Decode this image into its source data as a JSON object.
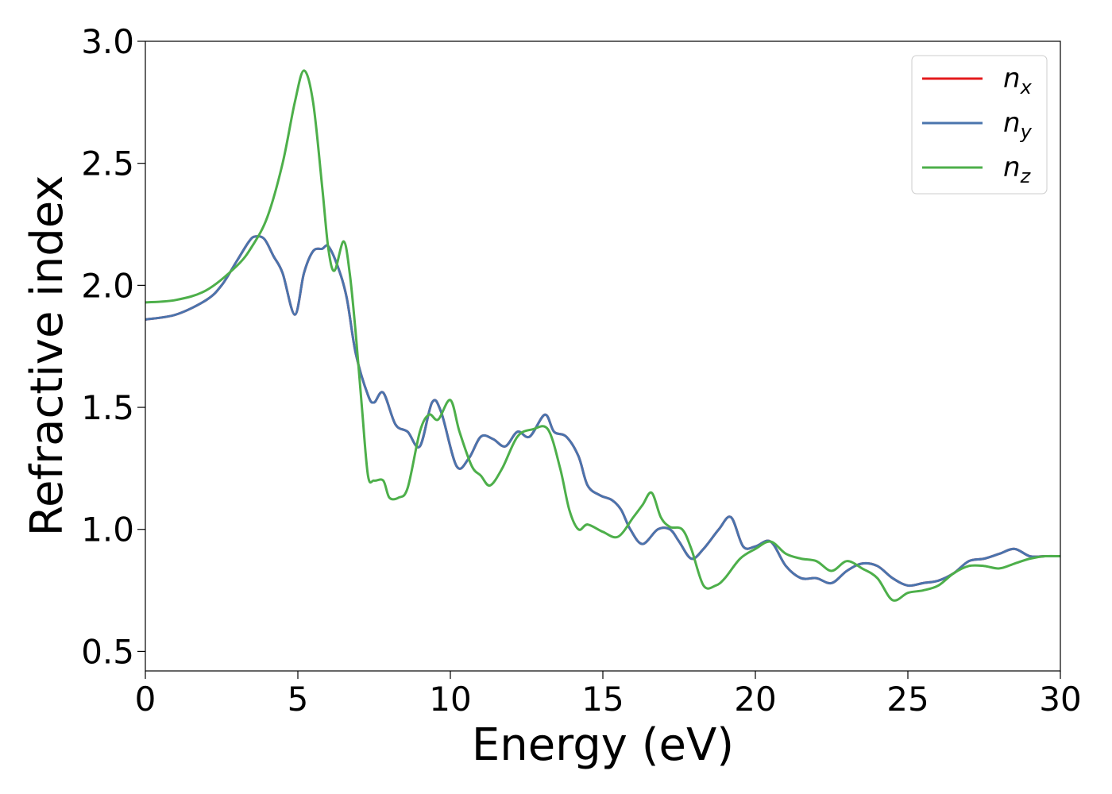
{
  "chart_data": {
    "type": "line",
    "title": "",
    "xlabel": "Energy (eV)",
    "ylabel": "Refractive index",
    "xlim": [
      0,
      30
    ],
    "ylim": [
      0.42,
      3.0
    ],
    "xticks": [
      0,
      5,
      10,
      15,
      20,
      25,
      30
    ],
    "xtick_labels": [
      "0",
      "5",
      "10",
      "15",
      "20",
      "25",
      "30"
    ],
    "yticks": [
      0.5,
      1.0,
      1.5,
      2.0,
      2.5,
      3.0
    ],
    "ytick_labels": [
      "0.5",
      "1.0",
      "1.5",
      "2.0",
      "2.5",
      "3.0"
    ],
    "grid": false,
    "legend_position": "top-right",
    "series": [
      {
        "name": "n",
        "subscript": "x",
        "color": "#e41a1c",
        "x": [
          0,
          1,
          2,
          2.5,
          3,
          3.4,
          3.6,
          3.9,
          4.2,
          4.5,
          4.9,
          5.2,
          5.5,
          5.8,
          6.0,
          6.3,
          6.6,
          6.9,
          7.3,
          7.5,
          7.8,
          8.2,
          8.6,
          9.0,
          9.4,
          9.7,
          10.2,
          10.6,
          11.0,
          11.4,
          11.8,
          12.2,
          12.6,
          13.1,
          13.4,
          13.8,
          14.2,
          14.5,
          14.9,
          15.3,
          15.6,
          15.9,
          16.3,
          16.8,
          17.2,
          17.5,
          17.9,
          18.3,
          18.8,
          19.2,
          19.6,
          20.0,
          20.5,
          21.0,
          21.5,
          22.0,
          22.5,
          23.0,
          23.5,
          24.0,
          24.5,
          25.0,
          25.5,
          26.0,
          26.5,
          27.0,
          27.5,
          28.0,
          28.5,
          29.0,
          29.5,
          30
        ],
        "y": [
          1.86,
          1.88,
          1.94,
          2.0,
          2.1,
          2.18,
          2.2,
          2.19,
          2.12,
          2.05,
          1.88,
          2.05,
          2.14,
          2.15,
          2.16,
          2.08,
          1.95,
          1.72,
          1.55,
          1.52,
          1.56,
          1.43,
          1.4,
          1.34,
          1.52,
          1.48,
          1.26,
          1.29,
          1.38,
          1.37,
          1.34,
          1.4,
          1.38,
          1.47,
          1.4,
          1.38,
          1.3,
          1.18,
          1.14,
          1.12,
          1.08,
          1.0,
          0.94,
          1.0,
          1.0,
          0.95,
          0.88,
          0.92,
          1.0,
          1.05,
          0.93,
          0.93,
          0.95,
          0.85,
          0.8,
          0.8,
          0.78,
          0.83,
          0.86,
          0.85,
          0.8,
          0.77,
          0.78,
          0.79,
          0.82,
          0.87,
          0.88,
          0.9,
          0.92,
          0.89,
          0.89,
          0.89
        ]
      },
      {
        "name": "n",
        "subscript": "y",
        "color": "#4a74ad",
        "x": [
          0,
          1,
          2,
          2.5,
          3,
          3.4,
          3.6,
          3.9,
          4.2,
          4.5,
          4.9,
          5.2,
          5.5,
          5.8,
          6.0,
          6.3,
          6.6,
          6.9,
          7.3,
          7.5,
          7.8,
          8.2,
          8.6,
          9.0,
          9.4,
          9.7,
          10.2,
          10.6,
          11.0,
          11.4,
          11.8,
          12.2,
          12.6,
          13.1,
          13.4,
          13.8,
          14.2,
          14.5,
          14.9,
          15.3,
          15.6,
          15.9,
          16.3,
          16.8,
          17.2,
          17.5,
          17.9,
          18.3,
          18.8,
          19.2,
          19.6,
          20.0,
          20.5,
          21.0,
          21.5,
          22.0,
          22.5,
          23.0,
          23.5,
          24.0,
          24.5,
          25.0,
          25.5,
          26.0,
          26.5,
          27.0,
          27.5,
          28.0,
          28.5,
          29.0,
          29.5,
          30
        ],
        "y": [
          1.86,
          1.88,
          1.94,
          2.0,
          2.1,
          2.18,
          2.2,
          2.19,
          2.12,
          2.05,
          1.88,
          2.05,
          2.14,
          2.15,
          2.16,
          2.08,
          1.95,
          1.72,
          1.55,
          1.52,
          1.56,
          1.43,
          1.4,
          1.34,
          1.52,
          1.48,
          1.26,
          1.29,
          1.38,
          1.37,
          1.34,
          1.4,
          1.38,
          1.47,
          1.4,
          1.38,
          1.3,
          1.18,
          1.14,
          1.12,
          1.08,
          1.0,
          0.94,
          1.0,
          1.0,
          0.95,
          0.88,
          0.92,
          1.0,
          1.05,
          0.93,
          0.93,
          0.95,
          0.85,
          0.8,
          0.8,
          0.78,
          0.83,
          0.86,
          0.85,
          0.8,
          0.77,
          0.78,
          0.79,
          0.82,
          0.87,
          0.88,
          0.9,
          0.92,
          0.89,
          0.89,
          0.89
        ]
      },
      {
        "name": "n",
        "subscript": "z",
        "color": "#4daf4a",
        "x": [
          0,
          1,
          2,
          3,
          3.5,
          4.0,
          4.5,
          4.9,
          5.2,
          5.5,
          5.8,
          6.0,
          6.2,
          6.5,
          6.7,
          6.9,
          7.1,
          7.3,
          7.5,
          7.8,
          8.0,
          8.3,
          8.6,
          9.0,
          9.3,
          9.6,
          10.0,
          10.3,
          10.7,
          11.0,
          11.3,
          11.7,
          12.2,
          12.7,
          13.2,
          13.6,
          13.9,
          14.2,
          14.5,
          15.0,
          15.5,
          16.0,
          16.3,
          16.6,
          16.9,
          17.2,
          17.6,
          17.9,
          18.3,
          18.7,
          19.0,
          19.5,
          20.0,
          20.5,
          21.0,
          21.5,
          22.0,
          22.5,
          23.0,
          23.5,
          24.0,
          24.5,
          25.0,
          25.5,
          26.0,
          26.5,
          27.0,
          27.5,
          28.0,
          28.5,
          29.0,
          29.5,
          30
        ],
        "y": [
          1.93,
          1.94,
          1.98,
          2.08,
          2.16,
          2.28,
          2.5,
          2.75,
          2.88,
          2.75,
          2.4,
          2.15,
          2.06,
          2.18,
          2.05,
          1.8,
          1.5,
          1.22,
          1.2,
          1.2,
          1.13,
          1.13,
          1.17,
          1.4,
          1.47,
          1.45,
          1.53,
          1.4,
          1.26,
          1.22,
          1.18,
          1.25,
          1.38,
          1.41,
          1.41,
          1.25,
          1.08,
          1.0,
          1.02,
          0.99,
          0.97,
          1.05,
          1.1,
          1.15,
          1.05,
          1.01,
          1.0,
          0.92,
          0.77,
          0.77,
          0.8,
          0.88,
          0.92,
          0.95,
          0.9,
          0.88,
          0.87,
          0.83,
          0.87,
          0.84,
          0.8,
          0.71,
          0.74,
          0.75,
          0.77,
          0.82,
          0.85,
          0.85,
          0.84,
          0.86,
          0.88,
          0.89,
          0.89
        ]
      }
    ]
  }
}
